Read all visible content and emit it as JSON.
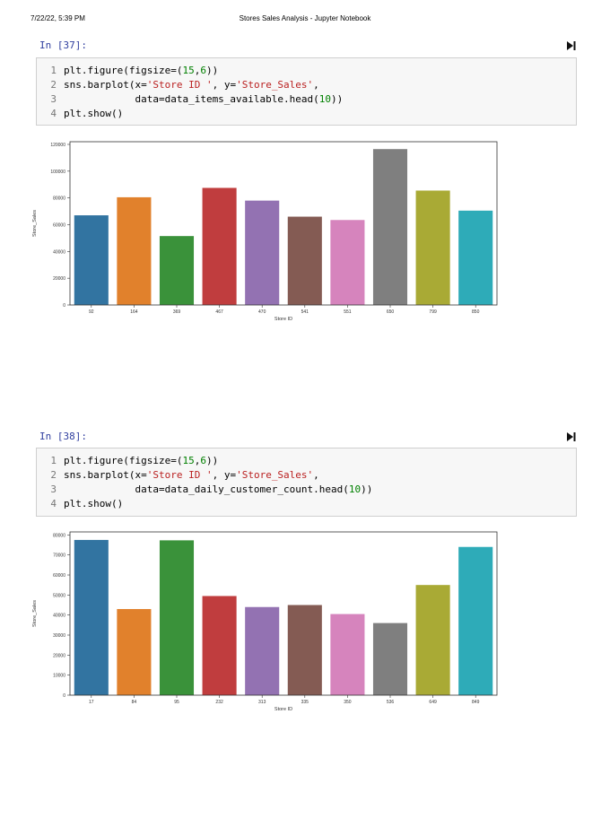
{
  "header": {
    "datetime": "7/22/22, 5:39 PM",
    "title": "Stores Sales Analysis - Jupyter Notebook"
  },
  "cells": [
    {
      "prompt": "In [37]:",
      "lines": [
        {
          "num": "1",
          "segments": [
            {
              "t": "plt.figure(figsize=(",
              "c": ""
            },
            {
              "t": "15",
              "c": "n"
            },
            {
              "t": ",",
              "c": ""
            },
            {
              "t": "6",
              "c": "n"
            },
            {
              "t": "))",
              "c": ""
            }
          ]
        },
        {
          "num": "2",
          "segments": [
            {
              "t": "sns.barplot(x=",
              "c": ""
            },
            {
              "t": "'Store ID '",
              "c": "s"
            },
            {
              "t": ", y=",
              "c": ""
            },
            {
              "t": "'Store_Sales'",
              "c": "s"
            },
            {
              "t": ",",
              "c": ""
            }
          ]
        },
        {
          "num": "3",
          "segments": [
            {
              "t": "            data=data_items_available.head(",
              "c": ""
            },
            {
              "t": "10",
              "c": "n"
            },
            {
              "t": "))",
              "c": ""
            }
          ]
        },
        {
          "num": "4",
          "segments": [
            {
              "t": "plt.show()",
              "c": ""
            }
          ]
        }
      ]
    },
    {
      "prompt": "In [38]:",
      "lines": [
        {
          "num": "1",
          "segments": [
            {
              "t": "plt.figure(figsize=(",
              "c": ""
            },
            {
              "t": "15",
              "c": "n"
            },
            {
              "t": ",",
              "c": ""
            },
            {
              "t": "6",
              "c": "n"
            },
            {
              "t": "))",
              "c": ""
            }
          ]
        },
        {
          "num": "2",
          "segments": [
            {
              "t": "sns.barplot(x=",
              "c": ""
            },
            {
              "t": "'Store ID '",
              "c": "s"
            },
            {
              "t": ", y=",
              "c": ""
            },
            {
              "t": "'Store_Sales'",
              "c": "s"
            },
            {
              "t": ",",
              "c": ""
            }
          ]
        },
        {
          "num": "3",
          "segments": [
            {
              "t": "            data=data_daily_customer_count.head(",
              "c": ""
            },
            {
              "t": "10",
              "c": "n"
            },
            {
              "t": "))",
              "c": ""
            }
          ]
        },
        {
          "num": "4",
          "segments": [
            {
              "t": "plt.show()",
              "c": ""
            }
          ]
        }
      ]
    }
  ],
  "colors": [
    "#3274a1",
    "#e1812c",
    "#3a923a",
    "#c03d3e",
    "#9372b2",
    "#845b53",
    "#d684bd",
    "#7f7f7f",
    "#a9aa35",
    "#2eabb8"
  ],
  "chart_data": [
    {
      "type": "bar",
      "categories": [
        "92",
        "164",
        "369",
        "467",
        "470",
        "541",
        "551",
        "650",
        "799",
        "850"
      ],
      "values": [
        67000,
        80500,
        51500,
        87500,
        78000,
        66000,
        63500,
        116500,
        85500,
        70500
      ],
      "xlabel": "Store ID",
      "ylabel": "Store_Sales",
      "ylim": [
        0,
        122000
      ],
      "yticks": [
        0,
        20000,
        40000,
        60000,
        80000,
        100000,
        120000
      ]
    },
    {
      "type": "bar",
      "categories": [
        "17",
        "84",
        "95",
        "232",
        "313",
        "335",
        "350",
        "536",
        "649",
        "849"
      ],
      "values": [
        77500,
        43000,
        77300,
        49500,
        44000,
        45000,
        40500,
        36000,
        55000,
        74000
      ],
      "xlabel": "Store ID",
      "ylabel": "Store_Sales",
      "ylim": [
        0,
        81500
      ],
      "yticks": [
        0,
        10000,
        20000,
        30000,
        40000,
        50000,
        60000,
        70000,
        80000
      ]
    }
  ]
}
